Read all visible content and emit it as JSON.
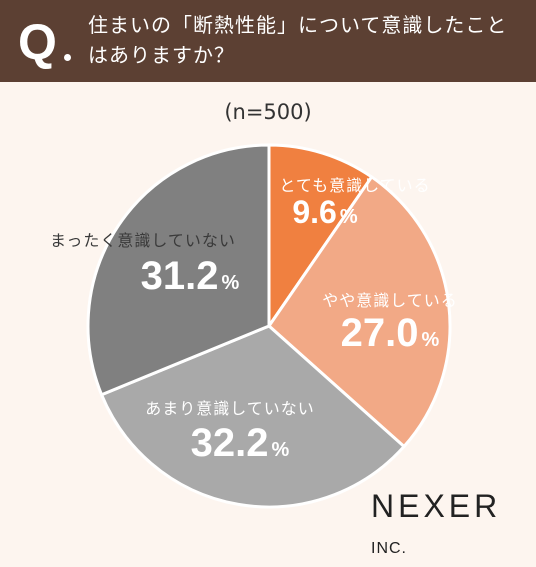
{
  "question": {
    "mark": "Q",
    "text": "住まいの「断熱性能」について意識したことはありますか？"
  },
  "sample_size": "(n=500)",
  "chart_data": {
    "type": "pie",
    "title": "住まいの「断熱性能」について意識したことはありますか？",
    "slices": [
      {
        "label": "とても意識している",
        "value": 9.6,
        "display": "9.6",
        "color": "#f08040"
      },
      {
        "label": "やや意識している",
        "value": 27.0,
        "display": "27.0",
        "color": "#f2a986"
      },
      {
        "label": "あまり意識していない",
        "value": 32.2,
        "display": "32.2",
        "color": "#a9a9a9"
      },
      {
        "label": "まったく意識していない",
        "value": 31.2,
        "display": "31.2",
        "color": "#808080"
      }
    ],
    "unit": "%"
  },
  "logo": {
    "name": "NEXER",
    "suffix": "INC."
  }
}
